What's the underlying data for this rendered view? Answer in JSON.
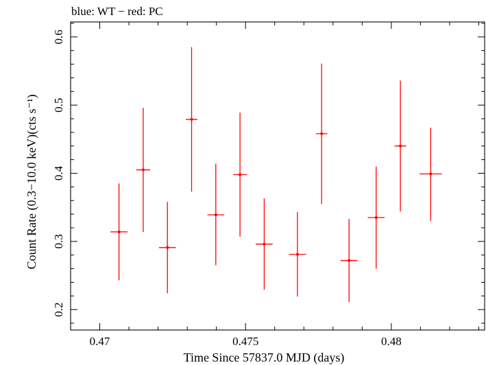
{
  "chart_data": {
    "type": "scatter",
    "title": "blue: WT − red: PC",
    "xlabel": "Time Since 57837.0 MJD (days)",
    "ylabel": "Count Rate (0.3−10.0 keV)(cts s⁻¹)",
    "xlim": [
      0.469,
      0.4832
    ],
    "ylim": [
      0.17,
      0.622
    ],
    "xticks": [
      0.47,
      0.475,
      0.48
    ],
    "xtick_labels": [
      "0.47",
      "0.475",
      "0.48"
    ],
    "yticks": [
      0.2,
      0.3,
      0.4,
      0.5,
      0.6
    ],
    "ytick_labels": [
      "0.2",
      "0.3",
      "0.4",
      "0.5",
      "0.6"
    ],
    "grid": false,
    "series": [
      {
        "name": "PC",
        "color": "#ff0000",
        "points": [
          {
            "x": 0.47066,
            "xerr": 0.00029,
            "y": 0.314,
            "yerr_lo": 0.071,
            "yerr_hi": 0.071
          },
          {
            "x": 0.47149,
            "xerr": 0.00024,
            "y": 0.405,
            "yerr_lo": 0.091,
            "yerr_hi": 0.091
          },
          {
            "x": 0.47232,
            "xerr": 0.00029,
            "y": 0.291,
            "yerr_lo": 0.067,
            "yerr_hi": 0.067
          },
          {
            "x": 0.47315,
            "xerr": 0.0002,
            "y": 0.479,
            "yerr_lo": 0.106,
            "yerr_hi": 0.106
          },
          {
            "x": 0.47398,
            "xerr": 0.00029,
            "y": 0.339,
            "yerr_lo": 0.074,
            "yerr_hi": 0.075
          },
          {
            "x": 0.47481,
            "xerr": 0.00024,
            "y": 0.398,
            "yerr_lo": 0.091,
            "yerr_hi": 0.091
          },
          {
            "x": 0.47564,
            "xerr": 0.00029,
            "y": 0.296,
            "yerr_lo": 0.067,
            "yerr_hi": 0.067
          },
          {
            "x": 0.47678,
            "xerr": 0.00029,
            "y": 0.281,
            "yerr_lo": 0.062,
            "yerr_hi": 0.062
          },
          {
            "x": 0.47761,
            "xerr": 0.0002,
            "y": 0.458,
            "yerr_lo": 0.103,
            "yerr_hi": 0.103
          },
          {
            "x": 0.47855,
            "xerr": 0.00029,
            "y": 0.272,
            "yerr_lo": 0.061,
            "yerr_hi": 0.061
          },
          {
            "x": 0.47948,
            "xerr": 0.00029,
            "y": 0.335,
            "yerr_lo": 0.075,
            "yerr_hi": 0.075
          },
          {
            "x": 0.48031,
            "xerr": 0.0002,
            "y": 0.44,
            "yerr_lo": 0.096,
            "yerr_hi": 0.096
          },
          {
            "x": 0.48135,
            "xerr": 0.00038,
            "y": 0.399,
            "yerr_lo": 0.069,
            "yerr_hi": 0.068
          }
        ]
      }
    ]
  }
}
